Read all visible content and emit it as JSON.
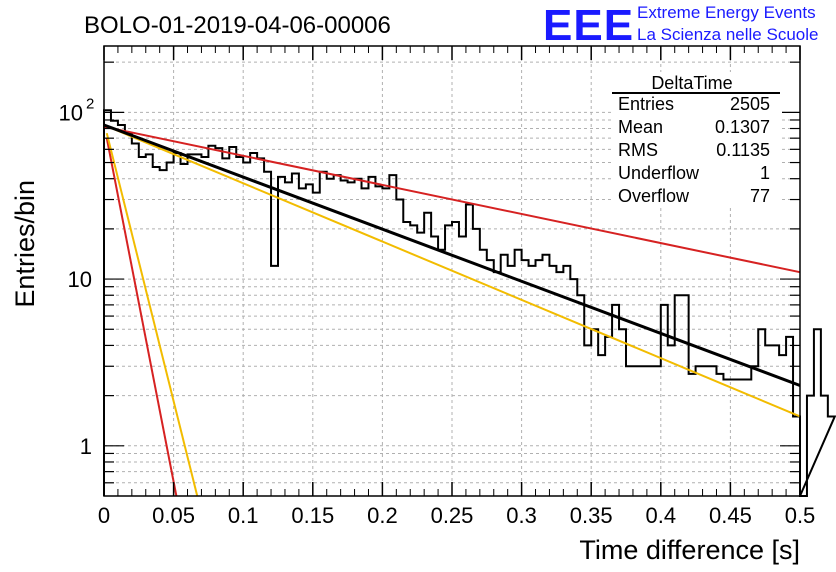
{
  "title": "BOLO-01-2019-04-06-00006",
  "logo": {
    "mark": "EEE",
    "line1": "Extreme Energy Events",
    "line2": "La Scienza nelle Scuole",
    "color": "#1a1aff"
  },
  "stats": {
    "title": "DeltaTime",
    "rows": [
      {
        "label": "Entries",
        "value": "2505"
      },
      {
        "label": "Mean",
        "value": "0.1307"
      },
      {
        "label": "RMS",
        "value": "0.1135"
      },
      {
        "label": "Underflow",
        "value": "1"
      },
      {
        "label": "Overflow",
        "value": "77"
      }
    ]
  },
  "chart_data": {
    "type": "histogram",
    "title": "BOLO-01-2019-04-06-00006",
    "xlabel": "Time difference [s]",
    "ylabel": "Entries/bin",
    "xlim": [
      0,
      0.5
    ],
    "ylim": [
      0.5,
      250
    ],
    "yscale": "log",
    "grid": true,
    "x_ticks": [
      "0",
      "0.05",
      "0.1",
      "0.15",
      "0.2",
      "0.25",
      "0.3",
      "0.35",
      "0.4",
      "0.45",
      "0.5"
    ],
    "y_ticks": [
      {
        "value": 1,
        "label": "1"
      },
      {
        "value": 10,
        "label": "10"
      },
      {
        "value": 100,
        "label": "10",
        "sup": "2"
      }
    ],
    "bin_width": 0.005,
    "counts": [
      103,
      89,
      84,
      75,
      65,
      54,
      56,
      47,
      45,
      50,
      57,
      49,
      56,
      56,
      54,
      63,
      61,
      53,
      62,
      54,
      50,
      57,
      53,
      44,
      12,
      41,
      38,
      43,
      35,
      37,
      33,
      44,
      40,
      42,
      39,
      38,
      40,
      35,
      41,
      36,
      35,
      42,
      30,
      22,
      21,
      19,
      25,
      18,
      15,
      21,
      22,
      18,
      28,
      20,
      15,
      13,
      11,
      14,
      12,
      15,
      13,
      12,
      13,
      14,
      12,
      11,
      12,
      10,
      8,
      4,
      5,
      3.5,
      4.5,
      7,
      5,
      3,
      3,
      3,
      3,
      3,
      7,
      4,
      8,
      8,
      2.7,
      3,
      3,
      3,
      2.7,
      2.5,
      2.5,
      2.5,
      2.5,
      3,
      5,
      4,
      4,
      3.5,
      4.5,
      1.5,
      0.5,
      2,
      5,
      2,
      1.5
    ],
    "fits": [
      {
        "color": "#d62222",
        "points": [
          [
            0,
            82
          ],
          [
            0.5,
            11
          ]
        ]
      },
      {
        "color": "#f2bc00",
        "points": [
          [
            0,
            84
          ],
          [
            0.5,
            1.5
          ]
        ]
      },
      {
        "color": "#000000",
        "points": [
          [
            0,
            84
          ],
          [
            0.5,
            2.3
          ]
        ]
      },
      {
        "color": "#d62222",
        "points": [
          [
            0.002,
            70
          ],
          [
            0.052,
            0.5
          ]
        ]
      },
      {
        "color": "#f2bc00",
        "points": [
          [
            0.002,
            75
          ],
          [
            0.067,
            0.5
          ]
        ]
      }
    ],
    "hist_color": "#000000"
  }
}
